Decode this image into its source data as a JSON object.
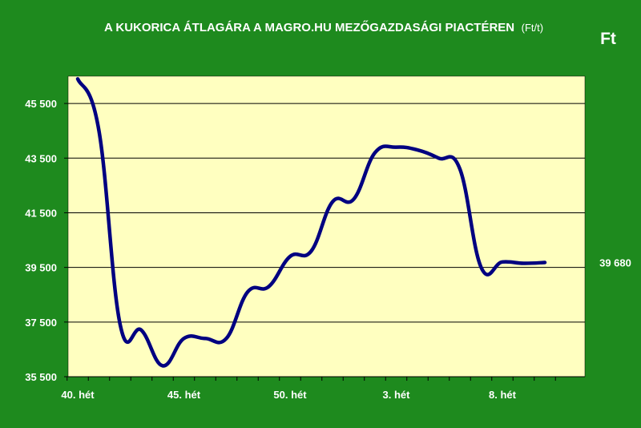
{
  "chart_data": {
    "type": "line",
    "title": "A KUKORICA ÁTLAGÁRA A MAGRO.HU MEZŐGAZDASÁGI PIACTÉREN",
    "title_unit": "(Ft/t)",
    "ylabel": "Ft",
    "ylim": [
      35500,
      46500
    ],
    "yticks": [
      35500,
      37500,
      39500,
      41500,
      43500,
      45500
    ],
    "ytick_labels": [
      "35 500",
      "37 500",
      "39 500",
      "41 500",
      "43 500",
      "45 500"
    ],
    "xtick_labels": [
      "40. hét",
      "45. hét",
      "50. hét",
      "3. hét",
      "8. hét"
    ],
    "xtick_index": [
      0,
      5,
      10,
      15,
      20
    ],
    "grid": true,
    "last_value_label": "39 680",
    "colors": {
      "background": "#1e8a1e",
      "plot_area": "#ffffc0",
      "line": "#000080",
      "text": "#ffffff"
    },
    "series": [
      {
        "values": [
          46400,
          44500,
          37400,
          37200,
          35900,
          36900,
          36900,
          36900,
          38600,
          38800,
          39900,
          40100,
          41900,
          42000,
          43700,
          43900,
          43800,
          43500,
          43100,
          39500,
          39700,
          39650,
          39680
        ]
      }
    ]
  }
}
